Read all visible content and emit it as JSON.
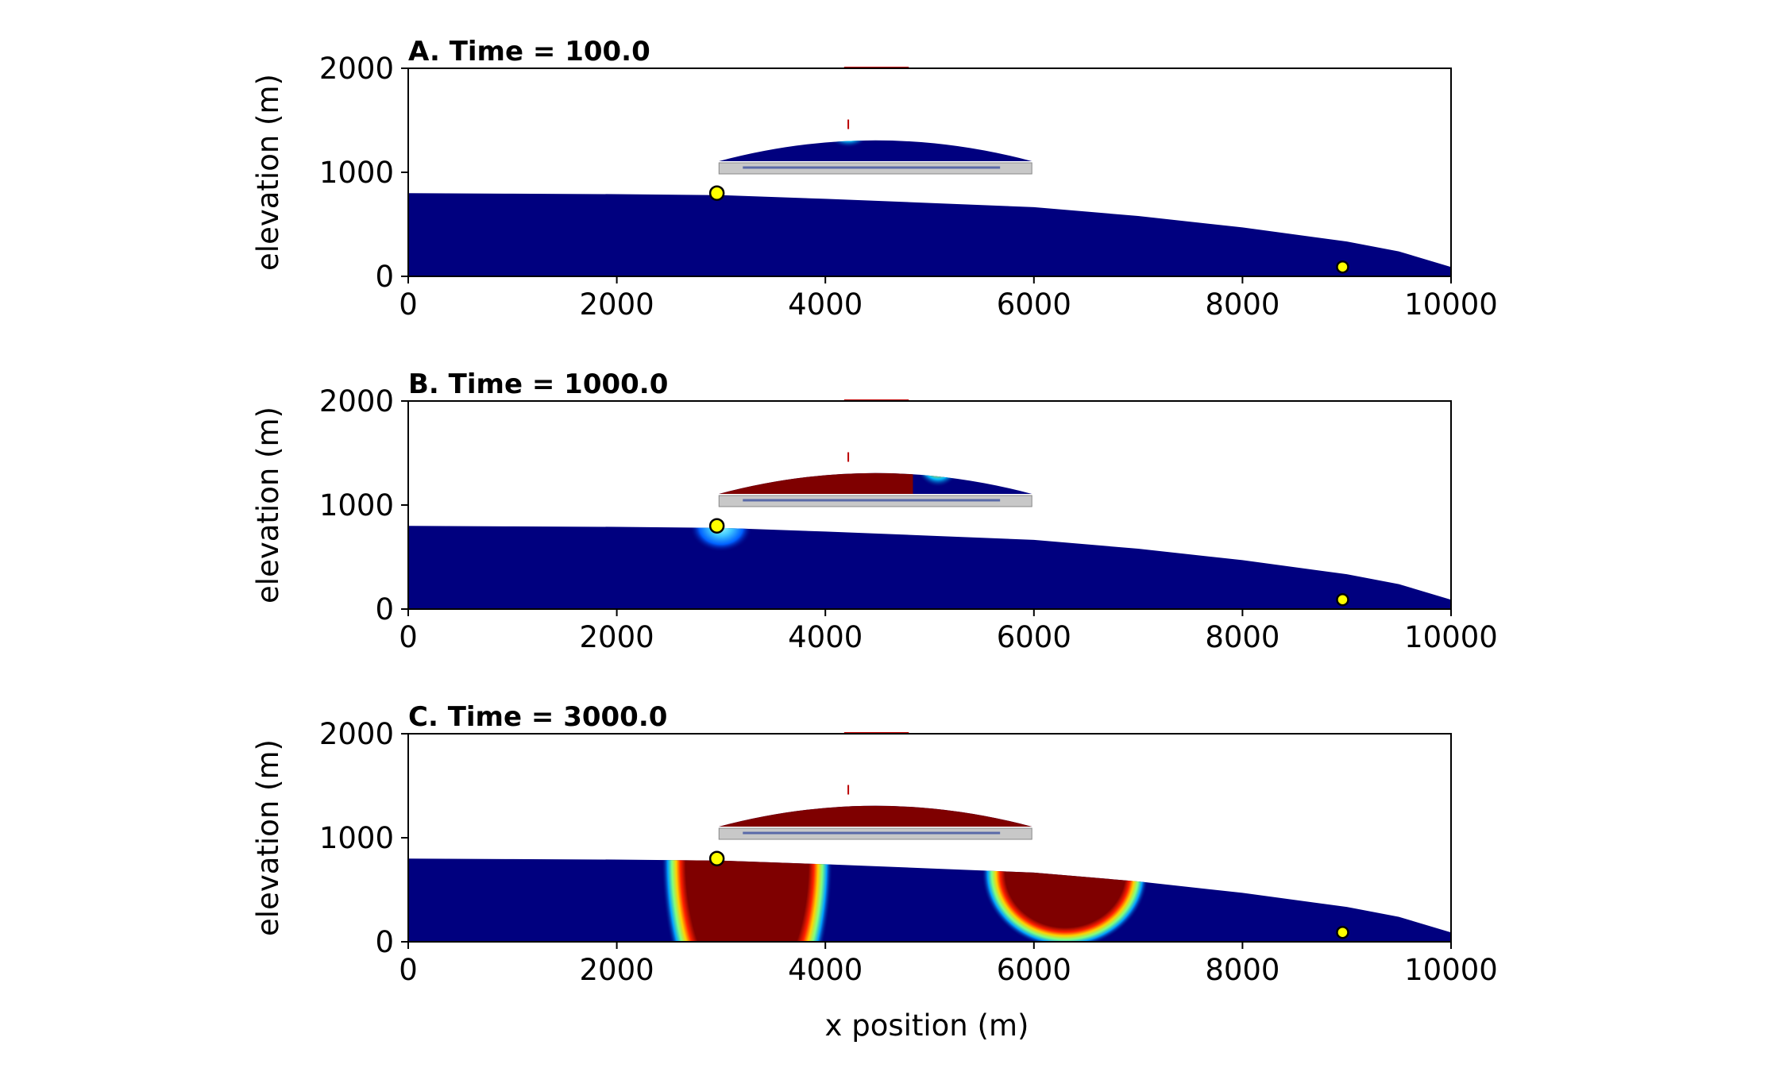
{
  "figure": {
    "xlabel": "x position (m)",
    "ylabel": "elevation (m)"
  },
  "colors": {
    "domain": "#00007f",
    "hot": "#7f0000",
    "well_fill": "#ffff00",
    "inset_base": "#c8c8c8",
    "inset_stripe": "#5a6aa8"
  },
  "chart_data": [
    {
      "type": "heatmap",
      "title": "A. Time = 100.0",
      "xlabel": "",
      "ylabel": "elevation (m)",
      "xlim": [
        0,
        10000
      ],
      "ylim": [
        0,
        2000
      ],
      "xticks": [
        "0",
        "2000",
        "4000",
        "6000",
        "8000",
        "10000"
      ],
      "yticks": [
        "0",
        "1000",
        "2000"
      ],
      "grid": false,
      "wells": [
        {
          "x": 2960,
          "y": 800
        },
        {
          "x": 8960,
          "y": 90
        }
      ],
      "top_surface": [
        [
          0,
          800
        ],
        [
          1000,
          795
        ],
        [
          2000,
          790
        ],
        [
          3000,
          780
        ],
        [
          4000,
          745
        ],
        [
          5000,
          705
        ],
        [
          6000,
          665
        ],
        [
          7000,
          580
        ],
        [
          8000,
          470
        ],
        [
          9000,
          335
        ],
        [
          9500,
          240
        ],
        [
          10000,
          90
        ]
      ],
      "plumes": [],
      "inset_fill": 0.1
    },
    {
      "type": "heatmap",
      "title": "B. Time = 1000.0",
      "xlabel": "",
      "ylabel": "elevation (m)",
      "xlim": [
        0,
        10000
      ],
      "ylim": [
        0,
        2000
      ],
      "xticks": [
        "0",
        "2000",
        "4000",
        "6000",
        "8000",
        "10000"
      ],
      "yticks": [
        "0",
        "1000",
        "2000"
      ],
      "grid": false,
      "wells": [
        {
          "x": 2960,
          "y": 800
        },
        {
          "x": 8960,
          "y": 90
        }
      ],
      "top_surface": [
        [
          0,
          800
        ],
        [
          1000,
          795
        ],
        [
          2000,
          790
        ],
        [
          3000,
          780
        ],
        [
          4000,
          745
        ],
        [
          5000,
          705
        ],
        [
          6000,
          665
        ],
        [
          7000,
          580
        ],
        [
          8000,
          470
        ],
        [
          9000,
          335
        ],
        [
          9500,
          240
        ],
        [
          10000,
          90
        ]
      ],
      "plumes": [
        {
          "cx": 3000,
          "cy": 790,
          "r": 300
        }
      ],
      "inset_fill": 0.7
    },
    {
      "type": "heatmap",
      "title": "C. Time = 3000.0",
      "xlabel": "x position (m)",
      "ylabel": "elevation (m)",
      "xlim": [
        0,
        10000
      ],
      "ylim": [
        0,
        2000
      ],
      "xticks": [
        "0",
        "2000",
        "4000",
        "6000",
        "8000",
        "10000"
      ],
      "yticks": [
        "0",
        "1000",
        "2000"
      ],
      "grid": false,
      "wells": [
        {
          "x": 2960,
          "y": 800
        },
        {
          "x": 8960,
          "y": 90
        }
      ],
      "top_surface": [
        [
          0,
          800
        ],
        [
          1000,
          795
        ],
        [
          2000,
          790
        ],
        [
          3000,
          780
        ],
        [
          4000,
          745
        ],
        [
          5000,
          705
        ],
        [
          6000,
          665
        ],
        [
          7000,
          580
        ],
        [
          8000,
          470
        ],
        [
          9000,
          335
        ],
        [
          9500,
          240
        ],
        [
          10000,
          90
        ]
      ],
      "plumes": [
        {
          "cx": 3250,
          "cy": 780,
          "r": 820
        },
        {
          "cx": 6300,
          "cy": 660,
          "r": 800,
          "ry": 330
        }
      ],
      "inset_fill": 1.0
    }
  ]
}
